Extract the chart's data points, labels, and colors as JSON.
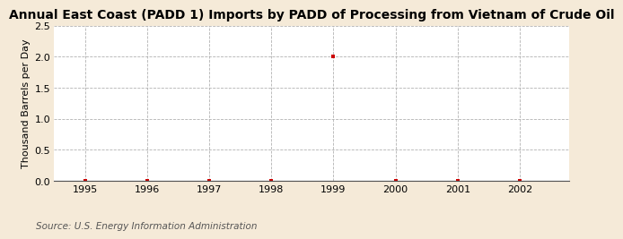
{
  "title": "Annual East Coast (PADD 1) Imports by PADD of Processing from Vietnam of Crude Oil",
  "ylabel": "Thousand Barrels per Day",
  "source": "Source: U.S. Energy Information Administration",
  "x_values": [
    1995,
    1996,
    1997,
    1998,
    1999,
    2000,
    2001,
    2002
  ],
  "y_values": [
    0,
    0,
    0,
    0,
    2.0,
    0,
    0,
    0
  ],
  "xlim": [
    1994.5,
    2002.8
  ],
  "ylim": [
    0.0,
    2.5
  ],
  "yticks": [
    0.0,
    0.5,
    1.0,
    1.5,
    2.0,
    2.5
  ],
  "xticks": [
    1995,
    1996,
    1997,
    1998,
    1999,
    2000,
    2001,
    2002
  ],
  "marker_color": "#cc0000",
  "marker_style": "s",
  "marker_size": 3.5,
  "background_color": "#f5ead8",
  "plot_bg_color": "#ffffff",
  "grid_color": "#aaaaaa",
  "title_fontsize": 10,
  "axis_label_fontsize": 8,
  "tick_fontsize": 8,
  "source_fontsize": 7.5
}
